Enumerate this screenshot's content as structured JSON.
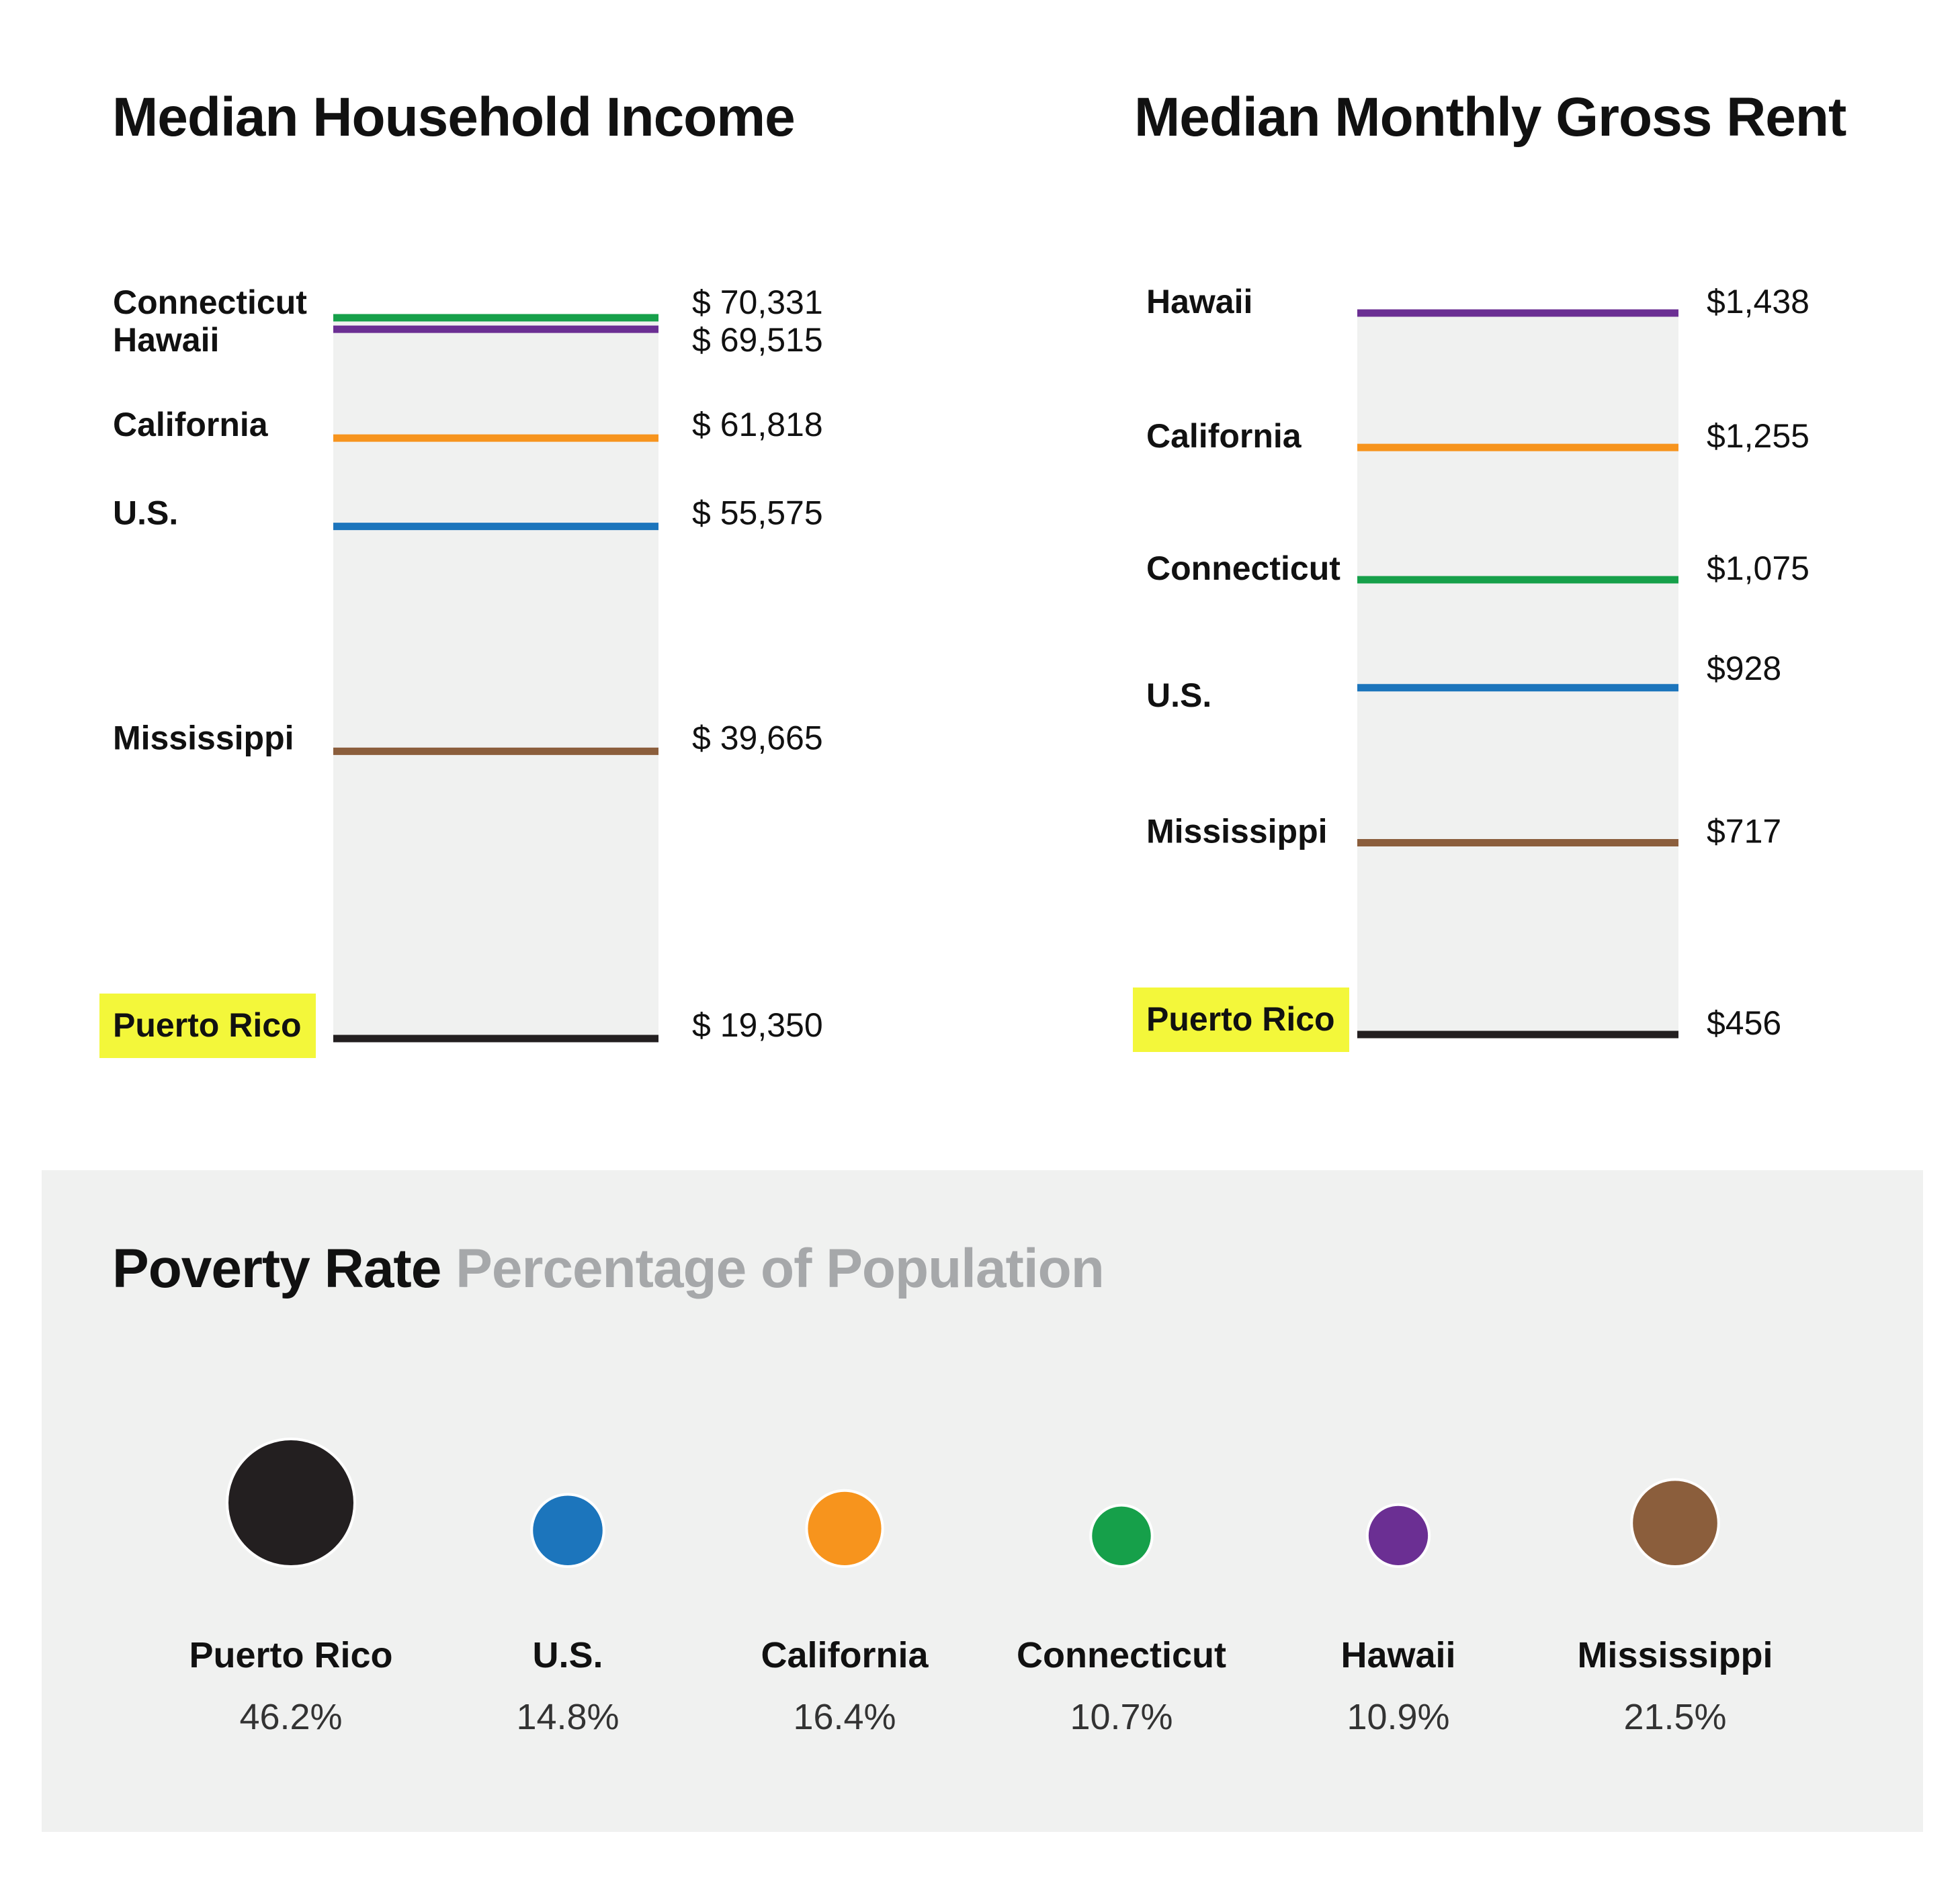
{
  "chart_data": [
    {
      "type": "bar",
      "id": "income",
      "title": "Median Household Income",
      "unit": "USD",
      "ylim": [
        19350,
        70331
      ],
      "items": [
        {
          "label": "Connecticut",
          "value": 70331,
          "value_label": "$ 70,331",
          "color": "#16a04a"
        },
        {
          "label": "Hawaii",
          "value": 69515,
          "value_label": "$ 69,515",
          "color": "#6b2f93"
        },
        {
          "label": "California",
          "value": 61818,
          "value_label": "$ 61,818",
          "color": "#f7941d"
        },
        {
          "label": "U.S.",
          "value": 55575,
          "value_label": "$ 55,575",
          "color": "#1c75bc"
        },
        {
          "label": "Mississippi",
          "value": 39665,
          "value_label": "$ 39,665",
          "color": "#8b5e3c"
        },
        {
          "label": "Puerto Rico",
          "value": 19350,
          "value_label": "$ 19,350",
          "color": "#231f20",
          "highlight": true
        }
      ]
    },
    {
      "type": "bar",
      "id": "rent",
      "title": "Median Monthly Gross Rent",
      "unit": "USD",
      "ylim": [
        456,
        1438
      ],
      "items": [
        {
          "label": "Hawaii",
          "value": 1438,
          "value_label": "$1,438",
          "color": "#6b2f93"
        },
        {
          "label": "California",
          "value": 1255,
          "value_label": "$1,255",
          "color": "#f7941d"
        },
        {
          "label": "Connecticut",
          "value": 1075,
          "value_label": "$1,075",
          "color": "#16a04a"
        },
        {
          "label": "U.S.",
          "value": 928,
          "value_label": "$928",
          "color": "#1c75bc"
        },
        {
          "label": "Mississippi",
          "value": 717,
          "value_label": "$717",
          "color": "#8b5e3c"
        },
        {
          "label": "Puerto Rico",
          "value": 456,
          "value_label": "$456",
          "color": "#231f20",
          "highlight": true
        }
      ]
    },
    {
      "type": "scatter",
      "id": "poverty",
      "title": "Poverty Rate",
      "subtitle": "Percentage of Population",
      "unit": "%",
      "items": [
        {
          "label": "Puerto Rico",
          "value": 46.2,
          "value_label": "46.2%",
          "color": "#231f20"
        },
        {
          "label": "U.S.",
          "value": 14.8,
          "value_label": "14.8%",
          "color": "#1c75bc"
        },
        {
          "label": "California",
          "value": 16.4,
          "value_label": "16.4%",
          "color": "#f7941d"
        },
        {
          "label": "Connecticut",
          "value": 10.7,
          "value_label": "10.7%",
          "color": "#16a04a"
        },
        {
          "label": "Hawaii",
          "value": 10.9,
          "value_label": "10.9%",
          "color": "#6b2f93"
        },
        {
          "label": "Mississippi",
          "value": 21.5,
          "value_label": "21.5%",
          "color": "#8b5e3c"
        }
      ]
    }
  ],
  "colors": {
    "highlight": "#f3f73a",
    "track": "#f0f1f0",
    "subtitle_gray": "#a6a8aa"
  }
}
